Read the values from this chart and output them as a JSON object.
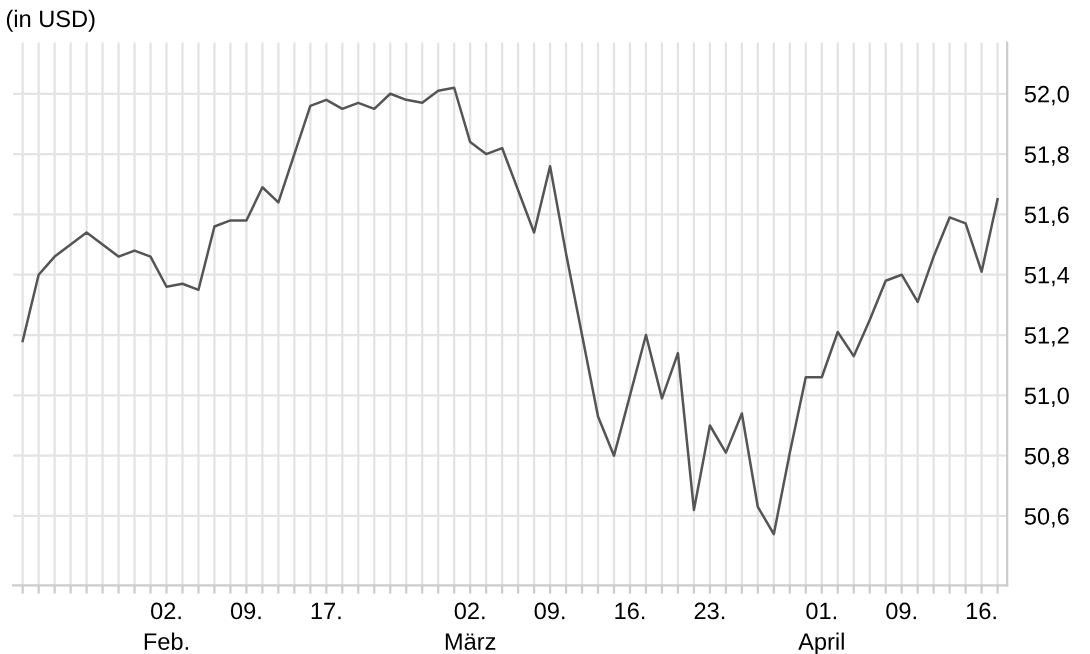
{
  "chart_data": {
    "type": "line",
    "title": "(in USD)",
    "categories": [
      null,
      null,
      null,
      null,
      null,
      null,
      null,
      null,
      null,
      "02.\nFeb.",
      null,
      null,
      null,
      null,
      "09.",
      null,
      null,
      null,
      null,
      "17.",
      null,
      null,
      null,
      null,
      null,
      null,
      null,
      null,
      "02.\nMärz",
      null,
      null,
      null,
      null,
      "09.",
      null,
      null,
      null,
      null,
      "16.",
      null,
      null,
      null,
      null,
      "23.",
      null,
      null,
      null,
      null,
      null,
      null,
      "01.\nApril",
      null,
      null,
      null,
      null,
      "09.",
      null,
      null,
      null,
      null,
      "16.",
      null
    ],
    "series": [
      {
        "color": "#555555",
        "values": [
          51.18,
          51.4,
          51.46,
          51.5,
          51.54,
          51.5,
          51.46,
          51.48,
          51.46,
          51.36,
          51.37,
          51.35,
          51.56,
          51.58,
          51.58,
          51.69,
          51.64,
          51.8,
          51.96,
          51.98,
          51.95,
          51.97,
          51.95,
          52.0,
          51.98,
          51.97,
          52.01,
          52.02,
          51.84,
          51.8,
          51.82,
          51.68,
          51.54,
          51.76,
          51.47,
          51.2,
          50.93,
          50.8,
          51.0,
          51.2,
          50.99,
          51.14,
          50.62,
          50.9,
          50.81,
          50.94,
          50.63,
          50.54,
          50.81,
          51.06,
          51.06,
          51.21,
          51.13,
          51.25,
          51.38,
          51.4,
          51.31,
          51.46,
          51.59,
          51.57,
          51.41,
          51.65
        ]
      }
    ],
    "ylim": [
      50.37,
      52.17
    ],
    "yticks": [
      {
        "value": 50.6,
        "label": "50,6"
      },
      {
        "value": 50.8,
        "label": "50,8"
      },
      {
        "value": 51.0,
        "label": "51,0"
      },
      {
        "value": 51.2,
        "label": "51,2"
      },
      {
        "value": 51.4,
        "label": "51,4"
      },
      {
        "value": 51.6,
        "label": "51,6"
      },
      {
        "value": 51.8,
        "label": "51,8"
      },
      {
        "value": 52.0,
        "label": "52,0"
      }
    ],
    "grid": true,
    "marker": "none",
    "line_style": "solid"
  }
}
